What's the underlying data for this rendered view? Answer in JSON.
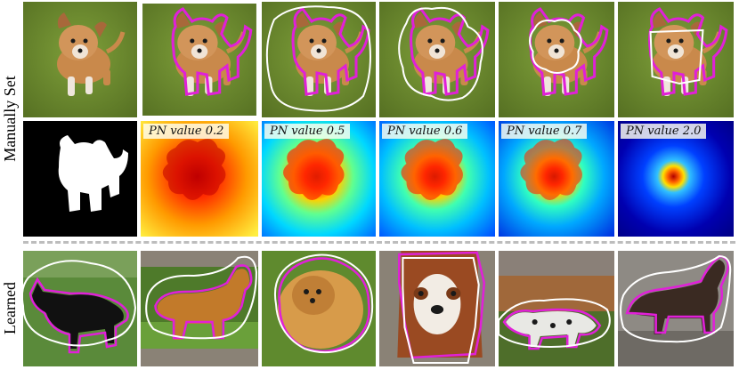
{
  "row_labels": {
    "manual": "Manually Set",
    "learned": "Learned"
  },
  "pn_labels": [
    "PN value 0.2",
    "PN value 0.5",
    "PN value 0.6",
    "PN value 0.7",
    "PN value 2.0"
  ],
  "colors": {
    "segmentation_outline": "#e020d8",
    "proposal_outline": "#ffffff",
    "grass": "#6f8f2e",
    "puppy": "#c98a4e"
  },
  "learned_subjects": [
    "black-dog",
    "golden-retriever",
    "pomeranian",
    "spaniel-face",
    "dalmatian",
    "grey-dog"
  ]
}
